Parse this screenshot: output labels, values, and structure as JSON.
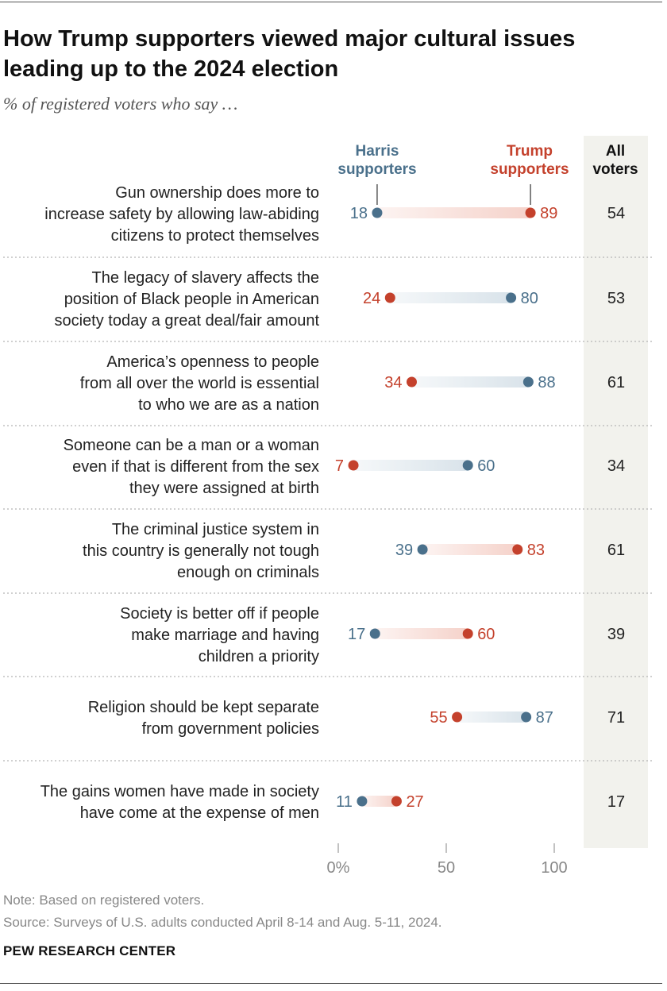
{
  "title": "How Trump supporters viewed major cultural issues leading up to the 2024 election",
  "subtitle": "% of registered voters who say …",
  "legend": {
    "harris": "Harris supporters",
    "trump": "Trump supporters",
    "all": "All voters"
  },
  "colors": {
    "harris": "#4a708b",
    "trump": "#c4412c",
    "harris_bar": "#d9e3ea",
    "trump_bar": "#f5d2ca",
    "all_column": "#f2f2ed"
  },
  "chart_data": {
    "type": "dot-range",
    "title": "How Trump supporters viewed major cultural issues leading up to the 2024 election",
    "subtitle": "% of registered voters who say …",
    "x_ticks": [
      "0%",
      "50",
      "100"
    ],
    "xlim": [
      0,
      100
    ],
    "series": [
      {
        "name": "Harris supporters"
      },
      {
        "name": "Trump supporters"
      },
      {
        "name": "All voters"
      }
    ],
    "rows": [
      {
        "label": [
          "Gun ownership does more to",
          "increase safety by allowing law-abiding",
          "citizens to protect themselves"
        ],
        "harris": 18,
        "trump": 89,
        "all": 54
      },
      {
        "label": [
          "The legacy of slavery affects the",
          "position of Black people in American",
          "society today a great deal/fair amount"
        ],
        "harris": 80,
        "trump": 24,
        "all": 53
      },
      {
        "label": [
          "America’s openness to people",
          "from all over the world is essential",
          "to who we are as a nation"
        ],
        "harris": 88,
        "trump": 34,
        "all": 61
      },
      {
        "label": [
          "Someone can be a man or a woman",
          "even if that is different from the sex",
          "they were assigned at birth"
        ],
        "harris": 60,
        "trump": 7,
        "all": 34
      },
      {
        "label": [
          "The criminal justice system in",
          "this country is generally not tough",
          "enough on criminals"
        ],
        "harris": 39,
        "trump": 83,
        "all": 61
      },
      {
        "label": [
          "Society is better off if people",
          "make marriage and having",
          "children a priority"
        ],
        "harris": 17,
        "trump": 60,
        "all": 39
      },
      {
        "label": [
          "Religion should be kept separate",
          "from government policies"
        ],
        "harris": 87,
        "trump": 55,
        "all": 71
      },
      {
        "label": [
          "The gains women have made in society",
          "have come at the expense of men"
        ],
        "harris": 11,
        "trump": 27,
        "all": 17
      }
    ]
  },
  "footer": {
    "note": "Note: Based on registered voters.",
    "source": "Source: Surveys of U.S. adults conducted April 8-14 and Aug. 5-11, 2024.",
    "brand": "PEW RESEARCH CENTER"
  }
}
